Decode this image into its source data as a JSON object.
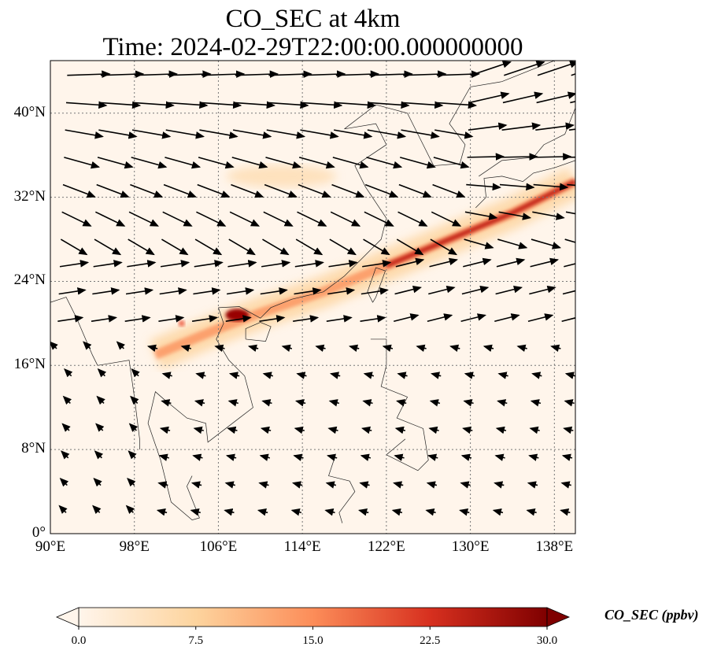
{
  "title": {
    "line1": "CO_SEC at 4km",
    "line2": "Time: 2024-02-29T22:00:00.000000000"
  },
  "chart_data": {
    "type": "heatmap",
    "variable": "CO_SEC",
    "units": "ppbv",
    "lon_range": [
      90,
      140
    ],
    "lat_range": [
      0,
      45
    ],
    "xticks": [
      {
        "value": 90,
        "label": "90°E"
      },
      {
        "value": 98,
        "label": "98°E"
      },
      {
        "value": 106,
        "label": "106°E"
      },
      {
        "value": 114,
        "label": "114°E"
      },
      {
        "value": 122,
        "label": "122°E"
      },
      {
        "value": 130,
        "label": "130°E"
      },
      {
        "value": 138,
        "label": "138°E"
      }
    ],
    "yticks": [
      {
        "value": 0,
        "label": "0°"
      },
      {
        "value": 8,
        "label": "8°N"
      },
      {
        "value": 16,
        "label": "16°N"
      },
      {
        "value": 24,
        "label": "24°N"
      },
      {
        "value": 32,
        "label": "32°N"
      },
      {
        "value": 40,
        "label": "40°N"
      }
    ],
    "grid": true,
    "plume_core": [
      [
        100,
        17
      ],
      [
        106,
        19.5
      ],
      [
        110,
        21
      ],
      [
        116,
        23
      ],
      [
        122,
        25.5
      ],
      [
        128,
        28
      ],
      [
        134,
        30.5
      ],
      [
        140,
        33.5
      ]
    ],
    "hotspots": [
      {
        "lon": 107.8,
        "lat": 20.8,
        "value": 30
      },
      {
        "lon": 102.5,
        "lat": 20,
        "value": 22
      }
    ],
    "colorbar": {
      "label": "CO_SEC (ppbv)",
      "range": [
        0,
        30
      ],
      "extend": "both",
      "ticks": [
        "0.0",
        "7.5",
        "15.0",
        "22.5",
        "30.0"
      ],
      "colors": [
        "#fff5eb",
        "#fdd49e",
        "#fc8d59",
        "#d7301f",
        "#7f0000"
      ]
    }
  }
}
